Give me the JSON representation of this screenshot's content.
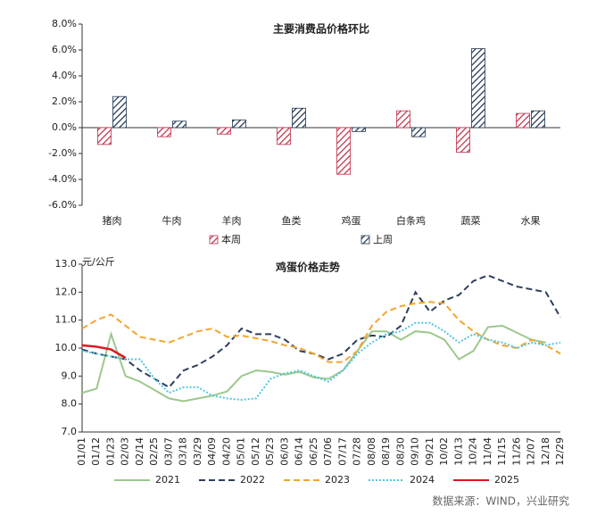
{
  "chart_data": [
    {
      "type": "bar",
      "title": "主要消费品价格环比",
      "categories": [
        "猪肉",
        "牛肉",
        "羊肉",
        "鱼类",
        "鸡蛋",
        "白条鸡",
        "蔬菜",
        "水果"
      ],
      "series": [
        {
          "name": "本周",
          "color": "#c0304a",
          "values": [
            -1.3,
            -0.7,
            -0.5,
            -1.3,
            -3.6,
            1.3,
            -1.9,
            1.1
          ]
        },
        {
          "name": "上周",
          "color": "#1f3550",
          "values": [
            2.4,
            0.5,
            0.6,
            1.5,
            -0.3,
            -0.7,
            6.1,
            1.3
          ]
        }
      ],
      "ylim": [
        -6,
        8
      ],
      "yticks": [
        {
          "value": -6,
          "label": "-6.0%"
        },
        {
          "value": -4,
          "label": "-4.0%"
        },
        {
          "value": -2,
          "label": "-2.0%"
        },
        {
          "value": 0,
          "label": "0.0%"
        },
        {
          "value": 2,
          "label": "2.0%"
        },
        {
          "value": 4,
          "label": "4.0%"
        },
        {
          "value": 6,
          "label": "6.0%"
        },
        {
          "value": 8,
          "label": "8.0%"
        }
      ],
      "hatch": true
    },
    {
      "type": "line",
      "title": "鸡蛋价格走势",
      "y_label": "元/公斤",
      "categories": [
        "01/01",
        "01/12",
        "01/23",
        "02/03",
        "02/14",
        "02/25",
        "03/07",
        "03/18",
        "03/29",
        "04/09",
        "04/20",
        "05/01",
        "05/12",
        "05/23",
        "06/03",
        "06/14",
        "06/25",
        "07/06",
        "07/17",
        "07/28",
        "08/08",
        "08/19",
        "08/30",
        "09/10",
        "09/21",
        "10/02",
        "10/13",
        "10/24",
        "11/04",
        "11/15",
        "11/26",
        "12/07",
        "12/18",
        "12/29"
      ],
      "series": [
        {
          "name": "2021",
          "color": "#9dc88d",
          "style": "solid",
          "values": [
            8.4,
            8.55,
            10.5,
            9.0,
            8.8,
            8.5,
            8.2,
            8.1,
            8.2,
            8.3,
            8.45,
            9.0,
            9.2,
            9.15,
            9.05,
            9.15,
            8.95,
            8.9,
            9.2,
            9.9,
            10.6,
            10.6,
            10.3,
            10.6,
            10.55,
            10.3,
            9.6,
            9.9,
            10.75,
            10.8,
            10.55,
            10.3,
            10.2,
            null
          ]
        },
        {
          "name": "2022",
          "color": "#2e3f5c",
          "style": "dashed",
          "values": [
            9.95,
            9.8,
            9.7,
            9.6,
            9.2,
            8.9,
            8.6,
            9.2,
            9.4,
            9.7,
            10.1,
            10.7,
            10.5,
            10.5,
            10.3,
            9.9,
            9.8,
            9.6,
            9.8,
            10.3,
            10.45,
            10.4,
            10.8,
            12.0,
            11.3,
            11.7,
            11.9,
            12.4,
            12.6,
            12.4,
            12.2,
            12.1,
            12.0,
            11.1
          ]
        },
        {
          "name": "2023",
          "color": "#f2a530",
          "style": "dashed",
          "values": [
            10.7,
            11.0,
            11.2,
            10.8,
            10.4,
            10.3,
            10.2,
            10.4,
            10.6,
            10.7,
            10.4,
            10.45,
            10.35,
            10.25,
            10.1,
            10.0,
            9.8,
            9.5,
            9.5,
            9.9,
            10.8,
            11.3,
            11.5,
            11.6,
            11.65,
            11.6,
            11.0,
            10.6,
            10.3,
            10.1,
            10.0,
            10.3,
            10.1,
            9.8
          ]
        },
        {
          "name": "2024",
          "color": "#4fc6e0",
          "style": "dotted",
          "values": [
            9.9,
            9.8,
            9.7,
            9.6,
            9.6,
            8.9,
            8.4,
            8.6,
            8.6,
            8.3,
            8.2,
            8.15,
            8.2,
            8.9,
            9.1,
            9.2,
            9.0,
            8.8,
            9.2,
            9.8,
            10.2,
            10.5,
            10.6,
            10.9,
            10.9,
            10.6,
            10.2,
            10.5,
            10.3,
            10.2,
            10.0,
            10.2,
            10.1,
            10.2
          ]
        },
        {
          "name": "2025",
          "color": "#e0141e",
          "style": "solid",
          "values": [
            10.1,
            10.05,
            9.95,
            9.65,
            null,
            null,
            null,
            null,
            null,
            null,
            null,
            null,
            null,
            null,
            null,
            null,
            null,
            null,
            null,
            null,
            null,
            null,
            null,
            null,
            null,
            null,
            null,
            null,
            null,
            null,
            null,
            null,
            null,
            null
          ]
        }
      ],
      "ylim": [
        7,
        13
      ],
      "yticks": [
        {
          "value": 7,
          "label": "7.0"
        },
        {
          "value": 8,
          "label": "8.0"
        },
        {
          "value": 9,
          "label": "9.0"
        },
        {
          "value": 10,
          "label": "10.0"
        },
        {
          "value": 11,
          "label": "11.0"
        },
        {
          "value": 12,
          "label": "12.0"
        },
        {
          "value": 13,
          "label": "13.0"
        }
      ]
    }
  ],
  "source": "数据来源：WIND，兴业研究"
}
